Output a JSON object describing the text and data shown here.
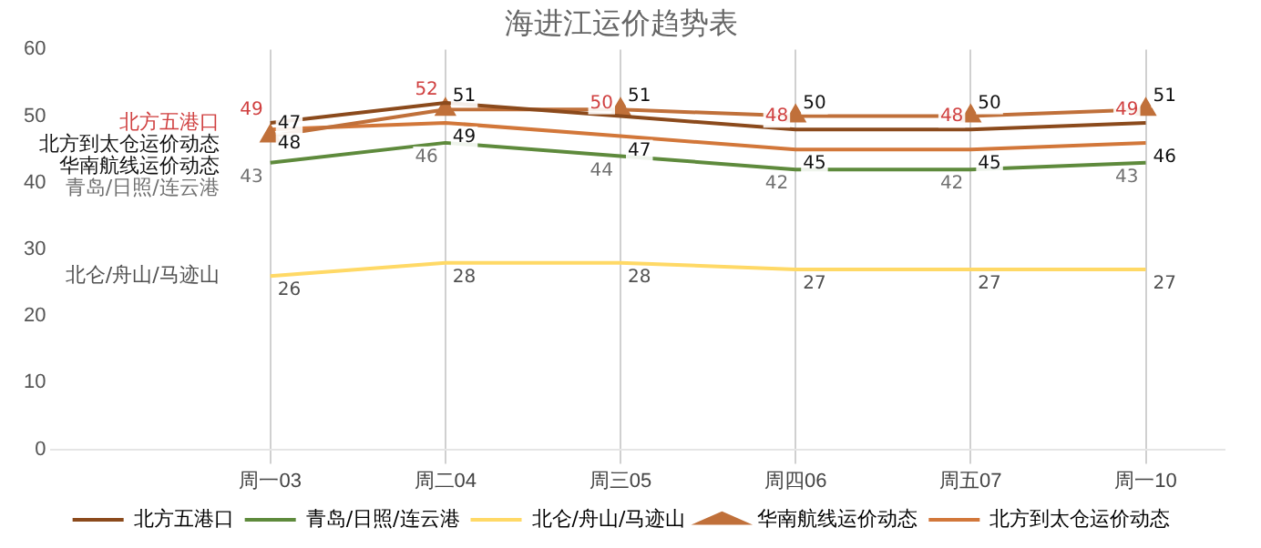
{
  "chart_data": {
    "type": "line",
    "title": "海进江运价趋势表",
    "categories": [
      "周一03",
      "周二04",
      "周三05",
      "周四06",
      "周五07",
      "周一10"
    ],
    "series": [
      {
        "name": "北方五港口",
        "color": "#8b4a1c",
        "values": [
          49,
          52,
          50,
          48,
          48,
          49
        ],
        "marker": "none"
      },
      {
        "name": "青岛/日照/连云港",
        "color": "#5e8a3c",
        "values": [
          43,
          46,
          44,
          42,
          42,
          43
        ],
        "marker": "none"
      },
      {
        "name": "北仑/舟山/马迹山",
        "color": "#ffd966",
        "values": [
          26,
          28,
          28,
          27,
          27,
          27
        ],
        "marker": "none"
      },
      {
        "name": "华南航线运价动态",
        "color": "#c0703a",
        "values": [
          47,
          51,
          51,
          50,
          50,
          51
        ],
        "marker": "triangle"
      },
      {
        "name": "北方到太仓运价动态",
        "color": "#d2773a",
        "values": [
          48,
          49,
          47,
          45,
          45,
          46
        ],
        "marker": "none"
      }
    ],
    "ylim": [
      0,
      60
    ],
    "yticks": [
      0,
      10,
      20,
      30,
      40,
      50,
      60
    ],
    "grid": "x",
    "legend": "bottom",
    "data_labels": true
  }
}
